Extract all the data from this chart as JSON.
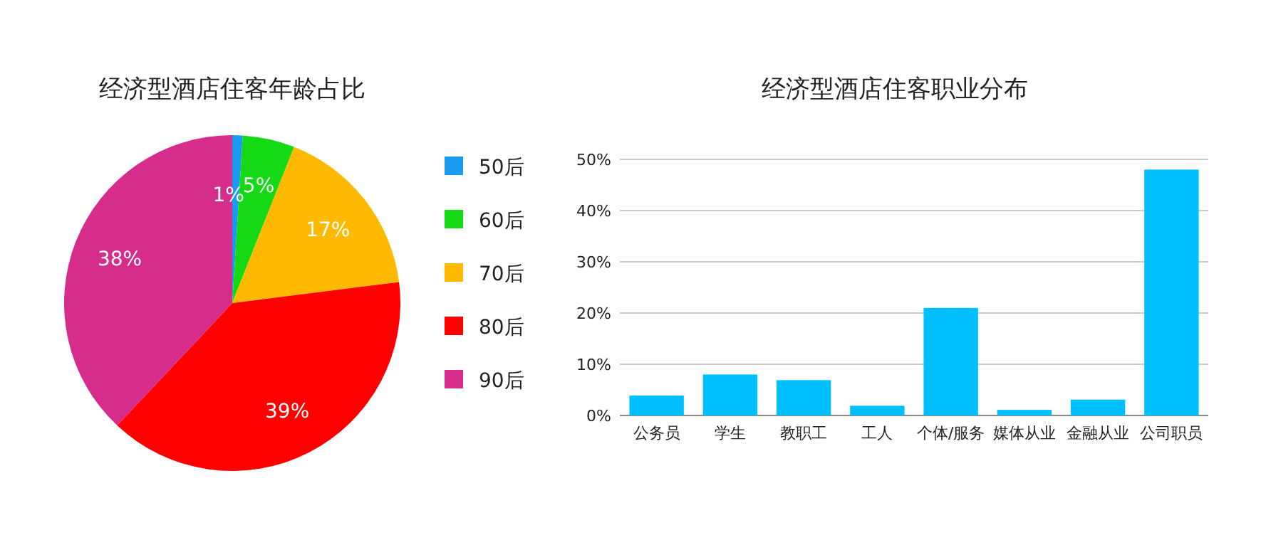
{
  "chart_data": [
    {
      "type": "pie",
      "title": "经济型酒店住客年龄占比",
      "categories": [
        "50后",
        "60后",
        "70后",
        "80后",
        "90后"
      ],
      "values": [
        1,
        5,
        17,
        39,
        38
      ],
      "colors": [
        "#1a9bf0",
        "#14d914",
        "#ffb900",
        "#ff0000",
        "#d62c8c"
      ],
      "value_labels": [
        "1%",
        "5%",
        "17%",
        "39%",
        "38%"
      ],
      "legend": "right"
    },
    {
      "type": "bar",
      "title": "经济型酒店住客职业分布",
      "categories": [
        "公务员",
        "学生",
        "教职工",
        "工人",
        "个体/服务",
        "媒体从业",
        "金融从业",
        "公司职员"
      ],
      "values": [
        3.9,
        8,
        6.9,
        1.9,
        21,
        1.1,
        3.1,
        48
      ],
      "color": "#00bfff",
      "ylim": [
        0,
        50
      ],
      "yticks": [
        {
          "value": 0,
          "label": "0%"
        },
        {
          "value": 10,
          "label": "10%"
        },
        {
          "value": 20,
          "label": "20%"
        },
        {
          "value": 30,
          "label": "30%"
        },
        {
          "value": 40,
          "label": "40%"
        },
        {
          "value": 50,
          "label": "50%"
        }
      ],
      "grid": "y"
    }
  ]
}
